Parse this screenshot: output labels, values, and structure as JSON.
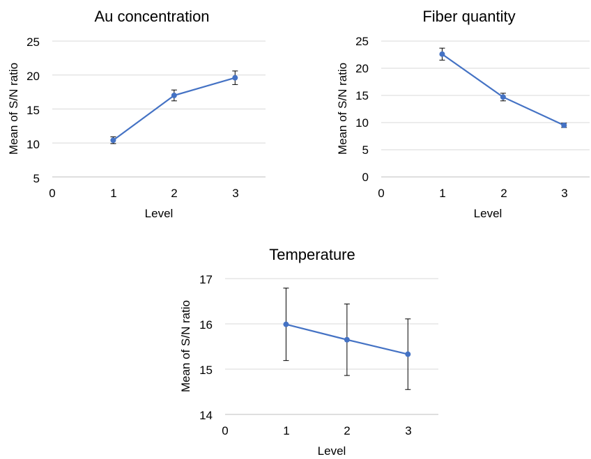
{
  "colors": {
    "series": "#4472c4",
    "gridline": "#d9d9d9",
    "axis": "#bfbfbf",
    "error_bar": "#000000"
  },
  "chart_data": [
    {
      "type": "line",
      "title": "Au concentration",
      "xlabel": "Level",
      "ylabel": "Mean of S/N ratio",
      "xlim": [
        0,
        3.5
      ],
      "ylim": [
        5,
        25
      ],
      "xticks": [
        0,
        1,
        2,
        3
      ],
      "yticks": [
        5,
        10,
        15,
        20,
        25
      ],
      "xtick_labels": [
        "0",
        "1",
        "2",
        "3"
      ],
      "ytick_labels": [
        "5",
        "10",
        "15",
        "20",
        "25"
      ],
      "grid": true,
      "x": [
        1,
        2,
        3
      ],
      "y": [
        10.4,
        17.0,
        19.6
      ],
      "error": [
        0.5,
        0.8,
        1.0
      ]
    },
    {
      "type": "line",
      "title": "Fiber quantity",
      "xlabel": "Level",
      "ylabel": "Mean of S/N ratio",
      "xlim": [
        0,
        3.5
      ],
      "ylim": [
        0,
        25
      ],
      "xticks": [
        0,
        1,
        2,
        3
      ],
      "yticks": [
        0,
        5,
        10,
        15,
        20,
        25
      ],
      "xtick_labels": [
        "0",
        "1",
        "2",
        "3"
      ],
      "ytick_labels": [
        "0",
        "5",
        "10",
        "15",
        "20",
        "25"
      ],
      "grid": true,
      "x": [
        1,
        2,
        3
      ],
      "y": [
        22.6,
        14.7,
        9.5
      ],
      "error": [
        1.1,
        0.7,
        0.4
      ]
    },
    {
      "type": "line",
      "title": "Temperature",
      "xlabel": "Level",
      "ylabel": "Mean of S/N ratio",
      "xlim": [
        0,
        3.5
      ],
      "ylim": [
        14,
        17
      ],
      "xticks": [
        0,
        1,
        2,
        3
      ],
      "yticks": [
        14,
        15,
        16,
        17
      ],
      "xtick_labels": [
        "0",
        "1",
        "2",
        "3"
      ],
      "ytick_labels": [
        "14",
        "15",
        "16",
        "17"
      ],
      "grid": true,
      "x": [
        1,
        2,
        3
      ],
      "y": [
        15.99,
        15.65,
        15.33
      ],
      "error": [
        0.8,
        0.79,
        0.78
      ]
    }
  ]
}
